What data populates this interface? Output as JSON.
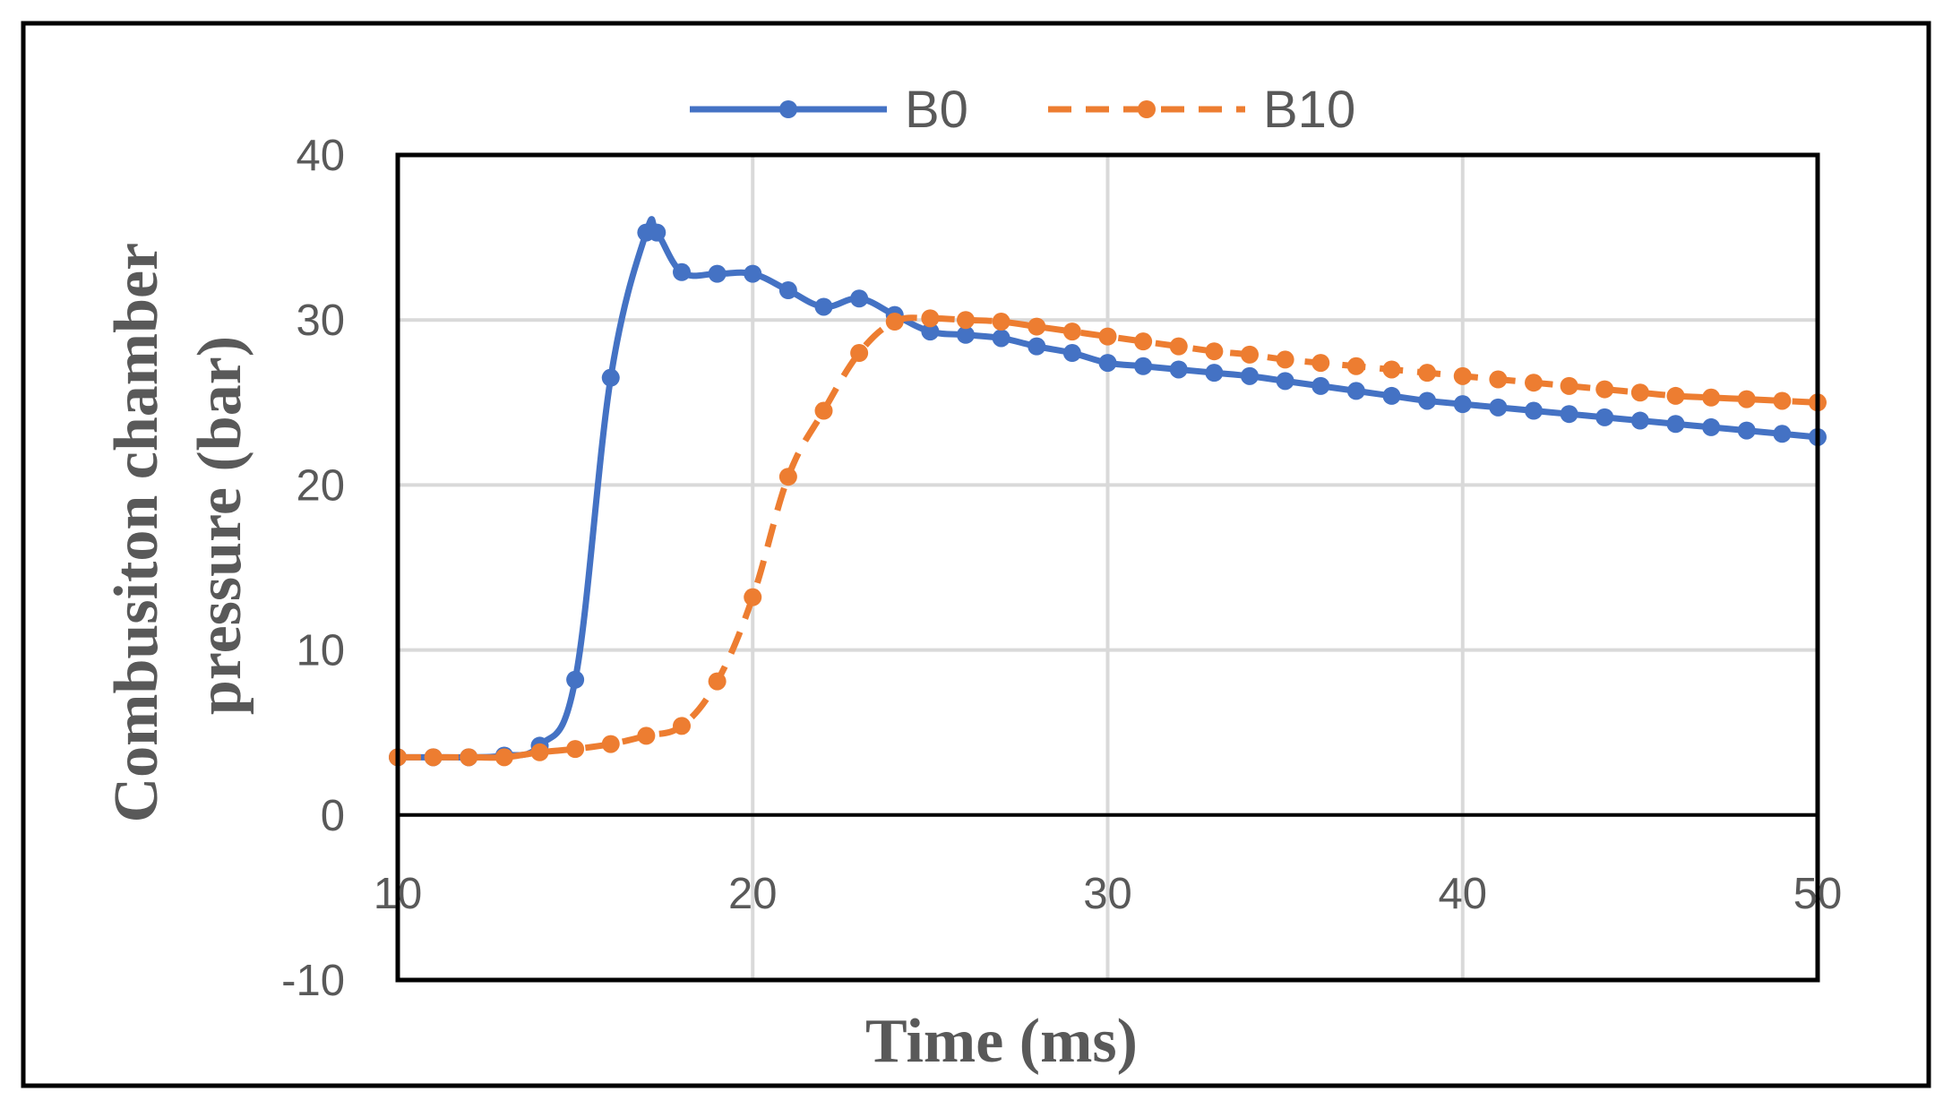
{
  "chart_data": {
    "type": "line",
    "title": "",
    "xlabel": "Time (ms)",
    "ylabel_lines": [
      "Combusiton chamber",
      "pressure (bar)"
    ],
    "xlim": [
      10,
      50
    ],
    "ylim": [
      -10,
      40
    ],
    "xticks": [
      10,
      20,
      30,
      40,
      50
    ],
    "yticks": [
      -10,
      0,
      10,
      20,
      30,
      40
    ],
    "grid": true,
    "legend_position": "top",
    "series": [
      {
        "name": "B0",
        "color": "#4472C4",
        "style": "solid",
        "x": [
          10,
          11,
          12,
          13,
          14,
          15,
          16,
          17,
          17.3,
          18,
          19,
          20,
          21,
          22,
          23,
          24,
          25,
          26,
          27,
          28,
          29,
          30,
          31,
          32,
          33,
          34,
          35,
          36,
          37,
          38,
          39,
          40,
          41,
          42,
          43,
          44,
          45,
          46,
          47,
          48,
          49,
          50
        ],
        "y": [
          3.5,
          3.5,
          3.5,
          3.6,
          4.2,
          8.2,
          26.5,
          35.3,
          35.3,
          32.9,
          32.8,
          32.8,
          31.8,
          30.8,
          31.3,
          30.3,
          29.3,
          29.1,
          28.9,
          28.4,
          28.0,
          27.4,
          27.2,
          27.0,
          26.8,
          26.6,
          26.3,
          26.0,
          25.7,
          25.4,
          25.1,
          24.9,
          24.7,
          24.5,
          24.3,
          24.1,
          23.9,
          23.7,
          23.5,
          23.3,
          23.1,
          22.9
        ]
      },
      {
        "name": "B10",
        "color": "#ED7D31",
        "style": "dashed",
        "x": [
          10,
          11,
          12,
          13,
          14,
          15,
          16,
          17,
          18,
          19,
          20,
          21,
          22,
          23,
          24,
          25,
          26,
          27,
          28,
          29,
          30,
          31,
          32,
          33,
          34,
          35,
          36,
          37,
          38,
          39,
          40,
          41,
          42,
          43,
          44,
          45,
          46,
          47,
          48,
          49,
          50
        ],
        "y": [
          3.5,
          3.5,
          3.5,
          3.5,
          3.8,
          4.0,
          4.3,
          4.8,
          5.4,
          8.1,
          13.2,
          20.5,
          24.5,
          28.0,
          29.9,
          30.1,
          30.0,
          29.9,
          29.6,
          29.3,
          29.0,
          28.7,
          28.4,
          28.1,
          27.9,
          27.6,
          27.4,
          27.2,
          27.0,
          26.8,
          26.6,
          26.4,
          26.2,
          26.0,
          25.8,
          25.6,
          25.4,
          25.3,
          25.2,
          25.1,
          25.0
        ]
      }
    ]
  }
}
